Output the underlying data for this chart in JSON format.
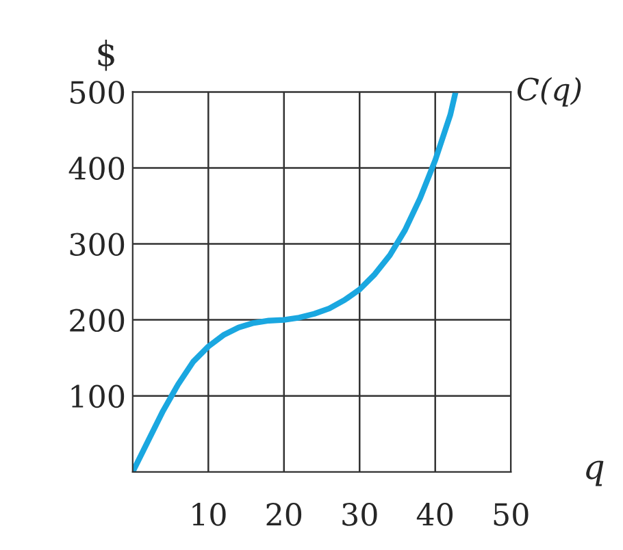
{
  "chart_data": {
    "type": "line",
    "xlabel": "q",
    "ylabel": "$",
    "x": [
      0,
      2,
      4,
      6,
      8,
      10,
      12,
      14,
      16,
      18,
      20,
      22,
      24,
      26,
      28,
      30,
      32,
      34,
      36,
      38,
      40,
      42,
      42.7
    ],
    "series": [
      {
        "name": "C(q)",
        "color": "#1aa7e0",
        "values": [
          0,
          40,
          80,
          115,
          145,
          165,
          180,
          190,
          196,
          199,
          200,
          203,
          208,
          215,
          226,
          240,
          260,
          285,
          318,
          360,
          410,
          470,
          500
        ]
      }
    ],
    "xlim": [
      0,
      50
    ],
    "ylim": [
      0,
      500
    ],
    "xticks": [
      10,
      20,
      30,
      40,
      50
    ],
    "yticks": [
      100,
      200,
      300,
      400,
      500
    ],
    "grid": true,
    "legend": false,
    "marker": "none",
    "line_style": "solid"
  }
}
